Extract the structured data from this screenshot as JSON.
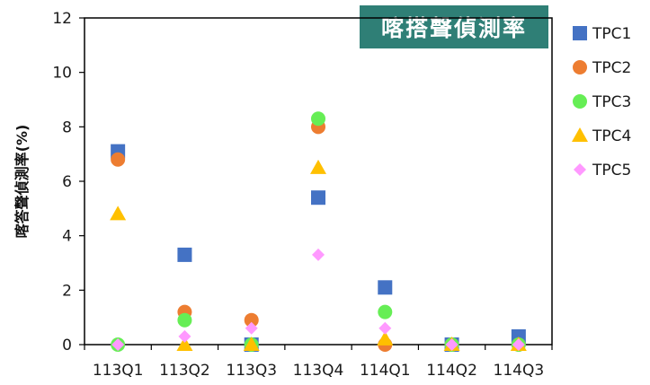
{
  "chart_data": {
    "type": "scatter",
    "title": "喀搭聲偵測率",
    "xlabel": "",
    "ylabel": "喀答聲偵測率(%)",
    "ylim": [
      0,
      12
    ],
    "yticks": [
      0,
      2,
      4,
      6,
      8,
      10,
      12
    ],
    "categories": [
      "113Q1",
      "113Q2",
      "113Q3",
      "113Q4",
      "114Q1",
      "114Q2",
      "114Q3"
    ],
    "grid": false,
    "legend_position": "right",
    "series": [
      {
        "name": "TPC1",
        "marker": "square",
        "color": "#4472c4",
        "values": [
          7.1,
          3.3,
          0.0,
          5.4,
          2.1,
          0.0,
          0.3
        ]
      },
      {
        "name": "TPC2",
        "marker": "circle",
        "color": "#ed7d31",
        "values": [
          6.8,
          1.2,
          0.9,
          8.0,
          0.0,
          0.0,
          0.0
        ]
      },
      {
        "name": "TPC3",
        "marker": "circle",
        "color": "#66ee55",
        "values": [
          0.0,
          0.9,
          0.0,
          8.3,
          1.2,
          0.0,
          0.0
        ]
      },
      {
        "name": "TPC4",
        "marker": "triangle",
        "color": "#ffc000",
        "values": [
          4.8,
          0.0,
          0.0,
          6.5,
          0.2,
          0.0,
          0.0
        ]
      },
      {
        "name": "TPC5",
        "marker": "diamond",
        "color": "#ff99ff",
        "values": [
          0.0,
          0.3,
          0.6,
          3.3,
          0.6,
          0.0,
          0.0
        ]
      }
    ]
  }
}
